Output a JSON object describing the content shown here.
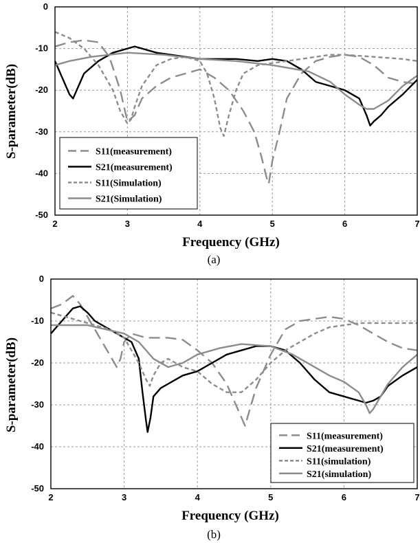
{
  "chart_data": [
    {
      "type": "line",
      "caption": "(a)",
      "xlabel": "Frequency (GHz)",
      "ylabel": "S-parameter(dB)",
      "xlim": [
        2,
        7
      ],
      "ylim": [
        -50,
        0
      ],
      "xticks": [
        2,
        3,
        4,
        5,
        6,
        7
      ],
      "yticks": [
        0,
        -10,
        -20,
        -30,
        -40,
        -50
      ],
      "grid": true,
      "legend_position": "bottom-left",
      "series": [
        {
          "name": "S11(measurement)",
          "color": "#8c8c8c",
          "style": "longdash",
          "x": [
            2,
            2.2,
            2.4,
            2.6,
            2.75,
            2.9,
            3.0,
            3.1,
            3.2,
            3.4,
            3.6,
            3.8,
            4.0,
            4.2,
            4.4,
            4.6,
            4.75,
            4.85,
            4.92,
            4.95,
            5.0,
            5.1,
            5.2,
            5.4,
            5.6,
            5.8,
            6.0,
            6.2,
            6.4,
            6.6,
            6.8,
            7.0
          ],
          "y": [
            -9.5,
            -8.5,
            -8.0,
            -8.5,
            -12,
            -20,
            -27.5,
            -26,
            -22,
            -19,
            -17,
            -16,
            -15,
            -17,
            -20,
            -25,
            -30,
            -36,
            -41,
            -42.5,
            -37,
            -30,
            -22,
            -16,
            -13,
            -12,
            -11.5,
            -12,
            -14,
            -17,
            -18,
            -18.5
          ]
        },
        {
          "name": "S21(measurement)",
          "color": "#000000",
          "style": "solid",
          "x": [
            2,
            2.1,
            2.2,
            2.25,
            2.3,
            2.4,
            2.6,
            2.8,
            3.0,
            3.1,
            3.2,
            3.4,
            3.6,
            3.8,
            4.0,
            4.2,
            4.5,
            4.8,
            5.0,
            5.2,
            5.4,
            5.6,
            5.8,
            6.0,
            6.2,
            6.3,
            6.35,
            6.4,
            6.5,
            6.6,
            6.8,
            7.0
          ],
          "y": [
            -13,
            -17,
            -21,
            -22,
            -20,
            -16,
            -13,
            -11,
            -10,
            -9.5,
            -10,
            -11,
            -11.5,
            -12,
            -12.5,
            -12.5,
            -12.5,
            -13,
            -12.5,
            -13,
            -15,
            -18,
            -19,
            -20,
            -22,
            -26,
            -28.5,
            -27.5,
            -26,
            -24,
            -21,
            -17.5
          ]
        },
        {
          "name": "S11(Simulation)",
          "color": "#8c8c8c",
          "style": "dash",
          "x": [
            2,
            2.2,
            2.4,
            2.6,
            2.8,
            2.9,
            3.0,
            3.05,
            3.1,
            3.2,
            3.4,
            3.6,
            3.8,
            4.0,
            4.1,
            4.2,
            4.28,
            4.33,
            4.4,
            4.5,
            4.6,
            4.8,
            5.0,
            5.2,
            5.4,
            5.6,
            5.8,
            6.0,
            6.4,
            6.8,
            7.0
          ],
          "y": [
            -6,
            -7.5,
            -10,
            -14,
            -20,
            -25,
            -28,
            -27,
            -24,
            -19,
            -14,
            -12.5,
            -12,
            -13,
            -16,
            -22,
            -29,
            -31,
            -26,
            -20,
            -16,
            -14,
            -13.5,
            -13,
            -12.5,
            -12,
            -11.5,
            -11.5,
            -12,
            -12.5,
            -13
          ]
        },
        {
          "name": "S21(Simulation)",
          "color": "#8c8c8c",
          "style": "solid",
          "x": [
            2,
            2.2,
            2.5,
            3.0,
            3.5,
            4.0,
            4.5,
            5.0,
            5.5,
            5.8,
            6.0,
            6.2,
            6.3,
            6.4,
            6.6,
            6.8,
            7.0
          ],
          "y": [
            -14,
            -13,
            -12,
            -11,
            -11.5,
            -12.5,
            -13,
            -14,
            -15.5,
            -18,
            -21,
            -23.5,
            -24.5,
            -24.5,
            -22.5,
            -19,
            -16.5
          ]
        }
      ]
    },
    {
      "type": "line",
      "caption": "(b)",
      "xlabel": "Frequency (GHz)",
      "ylabel": "S-parameter(dB)",
      "xlim": [
        2,
        7
      ],
      "ylim": [
        -50,
        0
      ],
      "xticks": [
        2,
        3,
        4,
        5,
        6,
        7
      ],
      "yticks": [
        0,
        -10,
        -20,
        -30,
        -40,
        -50
      ],
      "grid": true,
      "legend_position": "bottom-right",
      "series": [
        {
          "name": "S11(measurement)",
          "color": "#8c8c8c",
          "style": "longdash",
          "x": [
            2,
            2.15,
            2.3,
            2.4,
            2.5,
            2.6,
            2.7,
            2.8,
            2.9,
            2.95,
            3.0,
            3.1,
            3.2,
            3.3,
            3.4,
            3.6,
            3.8,
            4.0,
            4.2,
            4.4,
            4.5,
            4.6,
            4.65,
            4.7,
            4.8,
            5.0,
            5.2,
            5.4,
            5.6,
            5.8,
            6.0,
            6.2,
            6.4,
            6.6,
            6.8,
            7.0
          ],
          "y": [
            -7,
            -6,
            -4,
            -6,
            -9,
            -12,
            -15,
            -18,
            -21,
            -19,
            -15,
            -13,
            -13.5,
            -14,
            -14,
            -14,
            -14.5,
            -17,
            -20,
            -25,
            -29,
            -33,
            -35,
            -32,
            -26,
            -18,
            -12,
            -10,
            -9.5,
            -9,
            -9.5,
            -11,
            -13,
            -15,
            -16.5,
            -17
          ]
        },
        {
          "name": "S21(measurement)",
          "color": "#000000",
          "style": "solid",
          "x": [
            2,
            2.1,
            2.2,
            2.3,
            2.4,
            2.5,
            2.6,
            2.8,
            3.0,
            3.1,
            3.2,
            3.25,
            3.3,
            3.32,
            3.36,
            3.4,
            3.5,
            3.6,
            3.8,
            4.0,
            4.2,
            4.4,
            4.6,
            4.8,
            5.0,
            5.2,
            5.4,
            5.6,
            5.8,
            6.0,
            6.2,
            6.3,
            6.4,
            6.5,
            6.6,
            6.8,
            7.0
          ],
          "y": [
            -13,
            -11,
            -9,
            -7,
            -6.5,
            -8,
            -10,
            -12,
            -14,
            -15,
            -19,
            -27,
            -34,
            -36.5,
            -33,
            -28,
            -26,
            -25,
            -23,
            -22,
            -20,
            -18,
            -17,
            -16,
            -16,
            -17,
            -20,
            -24,
            -27,
            -28,
            -29,
            -29.5,
            -29,
            -28,
            -25.5,
            -23,
            -21
          ]
        },
        {
          "name": "S11(simulation)",
          "color": "#8c8c8c",
          "style": "dash",
          "x": [
            2,
            2.2,
            2.4,
            2.6,
            2.8,
            3.0,
            3.1,
            3.2,
            3.3,
            3.35,
            3.4,
            3.5,
            3.6,
            3.8,
            4.0,
            4.2,
            4.4,
            4.6,
            4.8,
            5.0,
            5.2,
            5.4,
            5.6,
            5.8,
            6.0,
            6.2,
            6.4,
            6.6,
            6.8,
            7.0
          ],
          "y": [
            -8,
            -9,
            -10,
            -11,
            -12,
            -14,
            -17,
            -20,
            -24,
            -25.5,
            -23,
            -20,
            -19,
            -21,
            -22,
            -25,
            -27,
            -27,
            -24,
            -20,
            -17,
            -15,
            -13,
            -11.5,
            -11,
            -10.5,
            -10.5,
            -10.5,
            -10.5,
            -10.5
          ]
        },
        {
          "name": "S21(simulation)",
          "color": "#8c8c8c",
          "style": "solid",
          "x": [
            2,
            2.5,
            3.0,
            3.2,
            3.4,
            3.6,
            3.8,
            4.0,
            4.3,
            4.6,
            5.0,
            5.3,
            5.6,
            5.8,
            6.0,
            6.2,
            6.3,
            6.35,
            6.4,
            6.5,
            6.6,
            6.8,
            7.0
          ],
          "y": [
            -11,
            -11,
            -13,
            -15,
            -19,
            -21,
            -20,
            -18,
            -16.5,
            -15.5,
            -16,
            -18,
            -21,
            -23,
            -24.5,
            -27,
            -30,
            -32,
            -31,
            -28,
            -25,
            -21,
            -18
          ]
        }
      ]
    }
  ]
}
